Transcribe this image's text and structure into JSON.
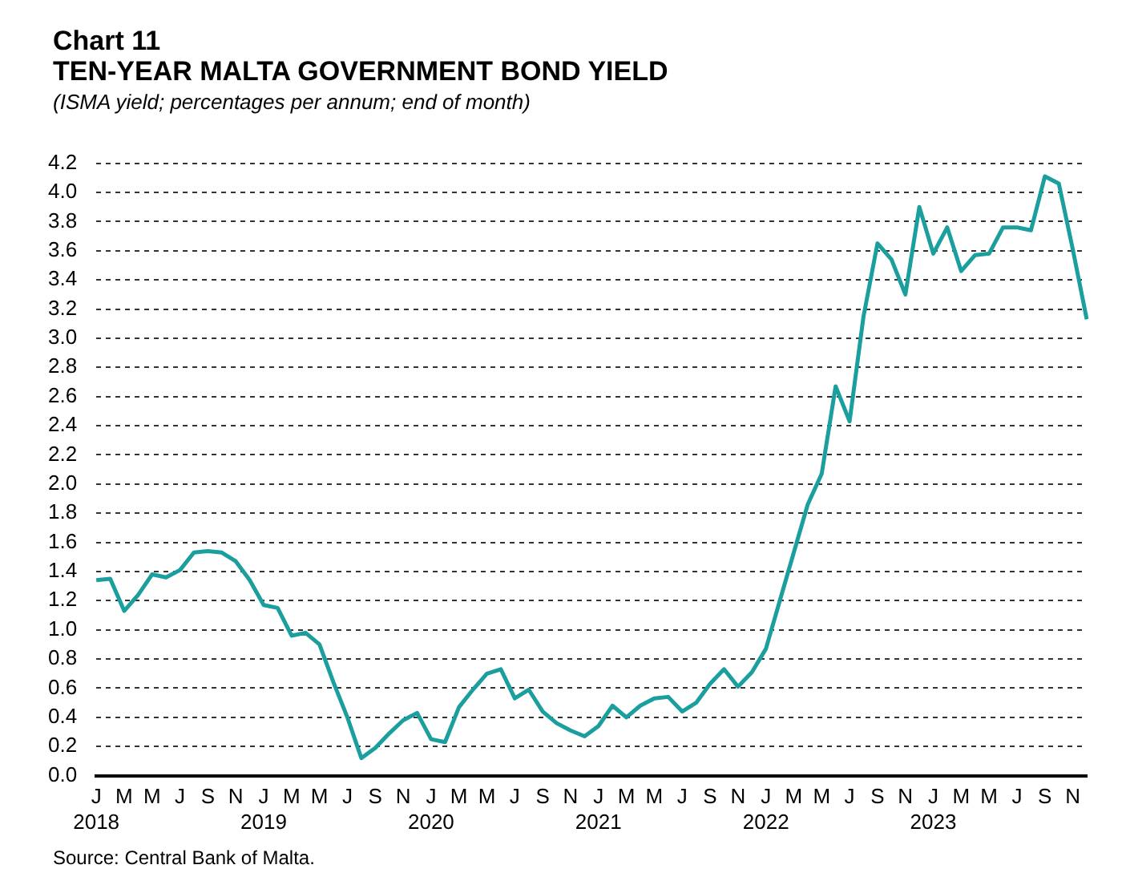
{
  "chart_data": {
    "type": "line",
    "title": "Chart 11",
    "subtitle": "TEN-YEAR MALTA GOVERNMENT BOND YIELD",
    "annotations": [
      "(ISMA yield; percentages per annum; end of month)",
      "Source: Central Bank of Malta."
    ],
    "categories": [
      "J\n2018",
      null,
      "M",
      null,
      "M",
      null,
      "J",
      null,
      "S",
      null,
      "N",
      null,
      "J\n2019",
      null,
      "M",
      null,
      "M",
      null,
      "J",
      null,
      "S",
      null,
      "N",
      null,
      "J\n2020",
      null,
      "M",
      null,
      "M",
      null,
      "J",
      null,
      "S",
      null,
      "N",
      null,
      "J\n2021",
      null,
      "M",
      null,
      "M",
      null,
      "J",
      null,
      "S",
      null,
      "N",
      null,
      "J\n2022",
      null,
      "M",
      null,
      "M",
      null,
      "J",
      null,
      "S",
      null,
      "N",
      null,
      "J\n2023",
      null,
      "M",
      null,
      "M",
      null,
      "J",
      null,
      "S",
      null,
      "N",
      null
    ],
    "series": [
      {
        "color": "#1a9e9e",
        "values": [
          1.34,
          1.35,
          1.13,
          1.24,
          1.38,
          1.36,
          1.41,
          1.53,
          1.54,
          1.53,
          1.47,
          1.34,
          1.17,
          1.15,
          0.96,
          0.98,
          0.9,
          0.64,
          0.4,
          0.12,
          0.19,
          0.29,
          0.38,
          0.43,
          0.25,
          0.23,
          0.47,
          0.59,
          0.7,
          0.73,
          0.53,
          0.59,
          0.44,
          0.36,
          0.31,
          0.27,
          0.34,
          0.48,
          0.4,
          0.48,
          0.53,
          0.54,
          0.44,
          0.5,
          0.63,
          0.73,
          0.61,
          0.71,
          0.87,
          1.2,
          1.53,
          1.86,
          2.07,
          2.67,
          2.43,
          3.15,
          3.65,
          3.54,
          3.3,
          3.9,
          3.58,
          3.76,
          3.46,
          3.57,
          3.58,
          3.76,
          3.76,
          3.74,
          4.11,
          4.06,
          3.61,
          3.13
        ]
      }
    ],
    "ylim": [
      0,
      4.2
    ],
    "yticks": [
      {
        "value": 0,
        "label": "0.0"
      },
      0.2,
      0.4,
      0.6,
      0.8,
      {
        "value": 1,
        "label": "1.0"
      },
      1.2,
      1.4,
      1.6,
      1.8,
      {
        "value": 2,
        "label": "2.0"
      },
      2.2,
      2.4,
      2.6,
      2.8,
      {
        "value": 3,
        "label": "3.0"
      },
      3.2,
      3.4,
      3.6,
      3.8,
      {
        "value": 4,
        "label": "4.0"
      },
      4.2
    ],
    "grid": "y",
    "legend": false,
    "marker": "none",
    "line_style": "solid"
  }
}
